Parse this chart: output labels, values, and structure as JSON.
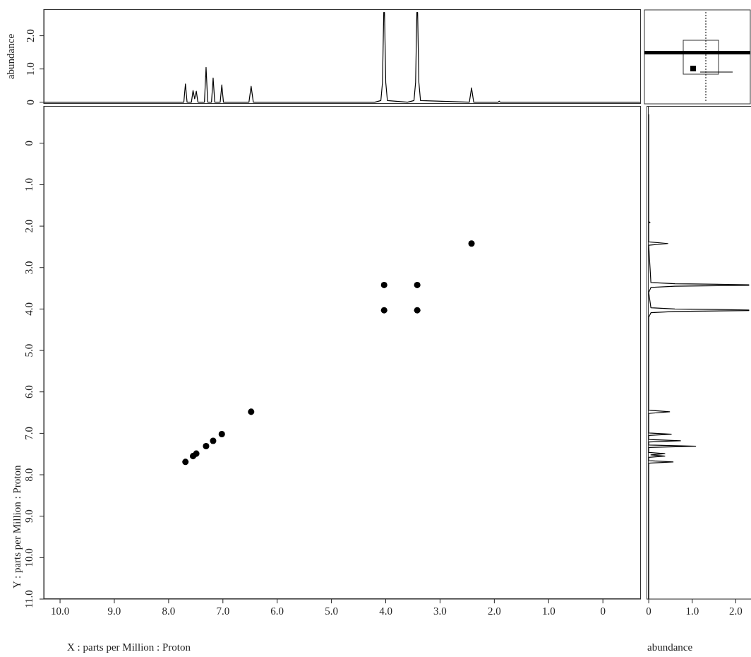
{
  "chart_data": [
    {
      "type": "line",
      "ylabel": "abundance",
      "xlim": [
        10.3,
        -0.7
      ],
      "ylim": [
        -0.05,
        2.8
      ],
      "yticks": [
        0,
        {
          "value": 1,
          "label": "1.0"
        },
        {
          "value": 2,
          "label": "2.0"
        }
      ],
      "tick_labels": "y",
      "grid": false,
      "legend": false,
      "marker": "none",
      "line_style": "solid",
      "series": [
        {
          "color": "#000000",
          "x": [
            10.3,
            8.0,
            7.72,
            7.69,
            7.66,
            7.58,
            7.55,
            7.52,
            7.49,
            7.46,
            7.34,
            7.31,
            7.28,
            7.21,
            7.18,
            7.15,
            7.05,
            7.02,
            6.99,
            6.52,
            6.48,
            6.44,
            4.2,
            4.09,
            4.06,
            4.037,
            4.023,
            4.0,
            3.97,
            3.6,
            3.48,
            3.45,
            3.427,
            3.413,
            3.39,
            3.36,
            2.46,
            2.42,
            2.38,
            1.93,
            1.91,
            1.89,
            -0.7
          ],
          "values": [
            0,
            0,
            0,
            0.55,
            0,
            0,
            0.35,
            0.1,
            0.33,
            0,
            0,
            1.05,
            0,
            0,
            0.73,
            0,
            0,
            0.52,
            0,
            0,
            0.48,
            0,
            0,
            0.05,
            0.6,
            2.7,
            2.7,
            0.6,
            0.05,
            0,
            0.05,
            0.6,
            2.7,
            2.7,
            0.6,
            0.05,
            0,
            0.43,
            0,
            0,
            0.03,
            0,
            0
          ]
        }
      ]
    },
    {
      "type": "scatter",
      "xlabel": "X : parts per Million : Proton",
      "ylabel": "Y : parts per Million : Proton",
      "xlim": [
        10.3,
        -0.7
      ],
      "ylim": [
        11.0,
        -0.9
      ],
      "xticks": [
        {
          "value": 10,
          "label": "10.0"
        },
        {
          "value": 9,
          "label": "9.0"
        },
        {
          "value": 8,
          "label": "8.0"
        },
        {
          "value": 7,
          "label": "7.0"
        },
        {
          "value": 6,
          "label": "6.0"
        },
        {
          "value": 5,
          "label": "5.0"
        },
        {
          "value": 4,
          "label": "4.0"
        },
        {
          "value": 3,
          "label": "3.0"
        },
        {
          "value": 2,
          "label": "2.0"
        },
        {
          "value": 1,
          "label": "1.0"
        },
        0
      ],
      "yticks": [
        0,
        {
          "value": 1,
          "label": "1.0"
        },
        {
          "value": 2,
          "label": "2.0"
        },
        {
          "value": 3,
          "label": "3.0"
        },
        {
          "value": 4,
          "label": "4.0"
        },
        {
          "value": 5,
          "label": "5.0"
        },
        {
          "value": 6,
          "label": "6.0"
        },
        {
          "value": 7,
          "label": "7.0"
        },
        {
          "value": 8,
          "label": "8.0"
        },
        {
          "value": 9,
          "label": "9.0"
        },
        {
          "value": 10,
          "label": "10.0"
        },
        {
          "value": 11,
          "label": "11.0"
        }
      ],
      "grid": false,
      "legend": false,
      "marker": "circle",
      "series": [
        {
          "color": "#000000",
          "x": [
            7.69,
            7.55,
            7.49,
            7.31,
            7.18,
            7.02,
            6.48,
            4.03,
            3.42,
            2.42,
            4.03,
            3.42
          ],
          "values": [
            7.69,
            7.55,
            7.49,
            7.31,
            7.18,
            7.02,
            6.48,
            4.03,
            3.42,
            2.42,
            3.42,
            4.03
          ]
        }
      ]
    },
    {
      "type": "line",
      "orientation": "horizontal",
      "xlabel": "abundance",
      "xlim": [
        -0.05,
        2.35
      ],
      "ylim": [
        11.0,
        -0.9
      ],
      "xticks": [
        0,
        {
          "value": 1,
          "label": "1.0"
        },
        {
          "value": 2,
          "label": "2.0"
        }
      ],
      "tick_labels": "x",
      "grid": false,
      "legend": false,
      "marker": "none",
      "line_style": "solid",
      "series": [
        {
          "color": "#000000",
          "x": [
            -0.7,
            1.89,
            1.91,
            1.93,
            2.38,
            2.42,
            2.46,
            3.36,
            3.39,
            3.413,
            3.427,
            3.45,
            3.48,
            3.6,
            3.97,
            4.0,
            4.023,
            4.037,
            4.06,
            4.09,
            4.2,
            6.44,
            6.48,
            6.52,
            6.99,
            7.02,
            7.05,
            7.15,
            7.18,
            7.21,
            7.28,
            7.31,
            7.34,
            7.46,
            7.49,
            7.52,
            7.55,
            7.58,
            7.66,
            7.69,
            7.72,
            8.0,
            11.0
          ],
          "values": [
            0,
            0,
            0.03,
            0,
            0,
            0.44,
            0,
            0.05,
            0.6,
            2.3,
            2.3,
            0.6,
            0.05,
            0,
            0.05,
            0.6,
            2.3,
            2.3,
            0.6,
            0.05,
            0,
            0,
            0.48,
            0,
            0,
            0.52,
            0,
            0,
            0.73,
            0,
            0,
            1.08,
            0,
            0,
            0.37,
            0.05,
            0.37,
            0,
            0,
            0.56,
            0,
            0,
            0
          ]
        }
      ]
    }
  ]
}
